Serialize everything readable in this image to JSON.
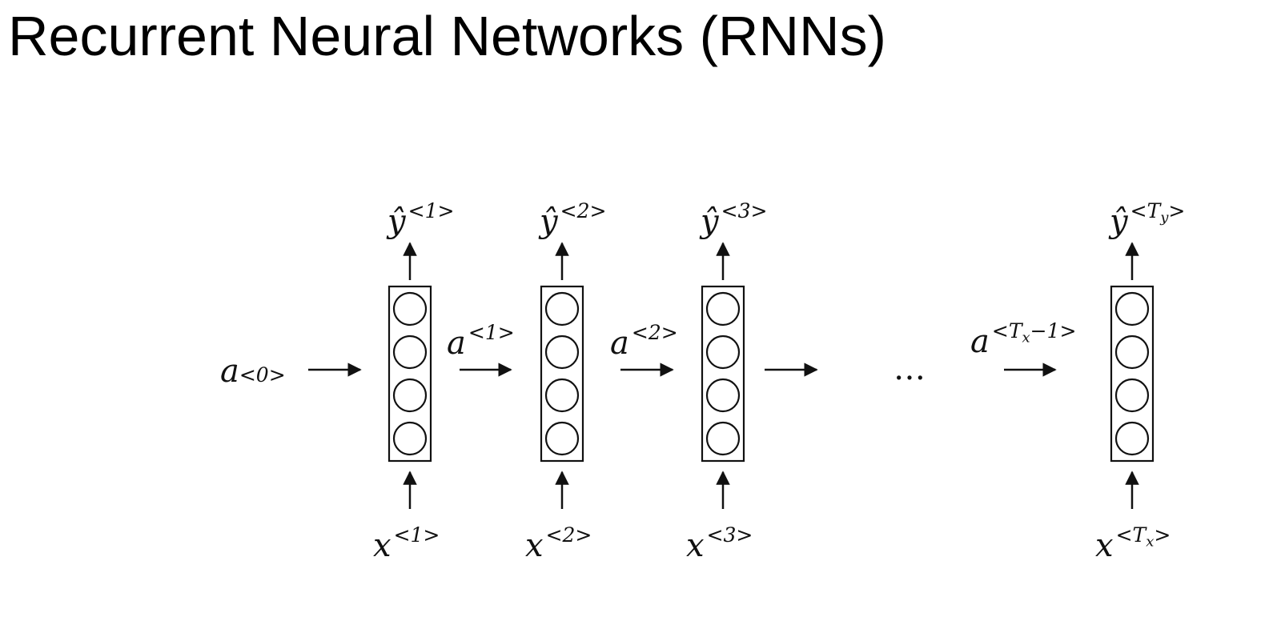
{
  "title": "Recurrent Neural Networks (RNNs)",
  "colors": {
    "ink": "#111111",
    "background": "#ffffff"
  },
  "initial_activation": {
    "base": "a",
    "sup": "<0>"
  },
  "ellipsis": "…",
  "steps": [
    {
      "output": {
        "base": "ŷ",
        "sup_open": "<",
        "sup_core": "1",
        "sub": "",
        "sup_close": ">"
      },
      "input": {
        "base": "x",
        "sup_open": "<",
        "sup_core": "1",
        "sub": "",
        "sup_close": ">"
      },
      "activation_out": {
        "base": "a",
        "sup_open": "<",
        "sup_core": "1",
        "sub": "",
        "sup_close": ">"
      }
    },
    {
      "output": {
        "base": "ŷ",
        "sup_open": "<",
        "sup_core": "2",
        "sub": "",
        "sup_close": ">"
      },
      "input": {
        "base": "x",
        "sup_open": "<",
        "sup_core": "2",
        "sub": "",
        "sup_close": ">"
      },
      "activation_out": {
        "base": "a",
        "sup_open": "<",
        "sup_core": "2",
        "sub": "",
        "sup_close": ">"
      }
    },
    {
      "output": {
        "base": "ŷ",
        "sup_open": "<",
        "sup_core": "3",
        "sub": "",
        "sup_close": ">"
      },
      "input": {
        "base": "x",
        "sup_open": "<",
        "sup_core": "3",
        "sub": "",
        "sup_close": ">"
      },
      "activation_out": null
    },
    {
      "output": {
        "base": "ŷ",
        "sup_open": "<",
        "sup_core": "T",
        "sub": "y",
        "sup_close": ">"
      },
      "input": {
        "base": "x",
        "sup_open": "<",
        "sup_core": "T",
        "sub": "x",
        "sup_close": ">"
      },
      "activation_out": null
    }
  ],
  "final_activation_in": {
    "base": "a",
    "sup_open": "<",
    "sup_core": "T",
    "sub": "x",
    "sup_close": "−1>"
  }
}
